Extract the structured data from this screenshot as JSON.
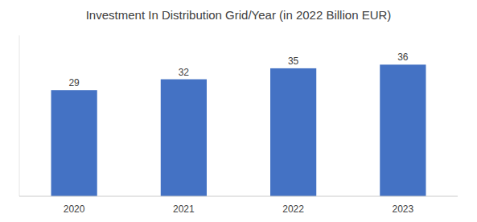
{
  "chart_data": {
    "type": "bar",
    "title": "Investment In Distribution Grid/Year (in 2022 Billion EUR)",
    "categories": [
      "2020",
      "2021",
      "2022",
      "2023"
    ],
    "values": [
      29,
      32,
      35,
      36
    ],
    "color": "#4472C4",
    "ylim": [
      0,
      44
    ],
    "grid": false,
    "data_labels": true,
    "tick_labels": "x"
  }
}
